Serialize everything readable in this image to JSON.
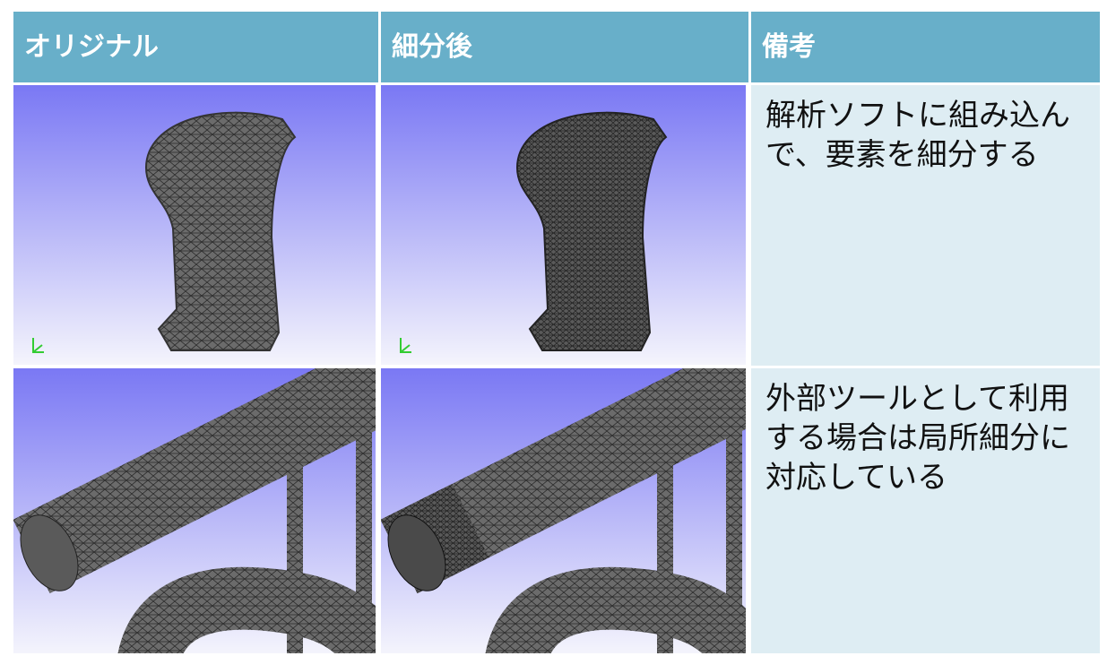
{
  "table": {
    "header": [
      "オリジナル",
      "細分後",
      "備考"
    ],
    "rows": [
      [
        "解析ソフトに組み込んで、要素を細分する"
      ],
      [
        "外部ツールとして利用する場合は局所細分に対応している"
      ]
    ]
  }
}
